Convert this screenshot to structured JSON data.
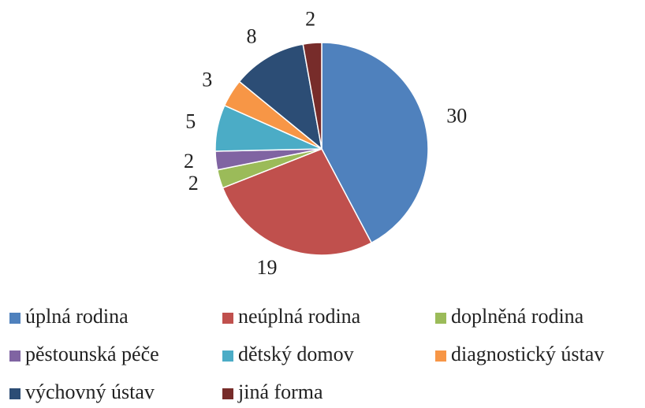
{
  "chart_data": {
    "type": "pie",
    "categories": [
      "úplná rodina",
      "neúplná rodina",
      "doplněná rodina",
      "pěstounská péče",
      "dětský domov",
      "diagnostický ústav",
      "výchovný ústav",
      "jiná forma"
    ],
    "values": [
      30,
      19,
      2,
      2,
      5,
      3,
      8,
      2
    ],
    "colors": [
      "#4f81bd",
      "#c0504d",
      "#9bbb59",
      "#8064a2",
      "#4bacc6",
      "#f79646",
      "#2c4d75",
      "#772c2a"
    ],
    "legend": "bottom"
  }
}
